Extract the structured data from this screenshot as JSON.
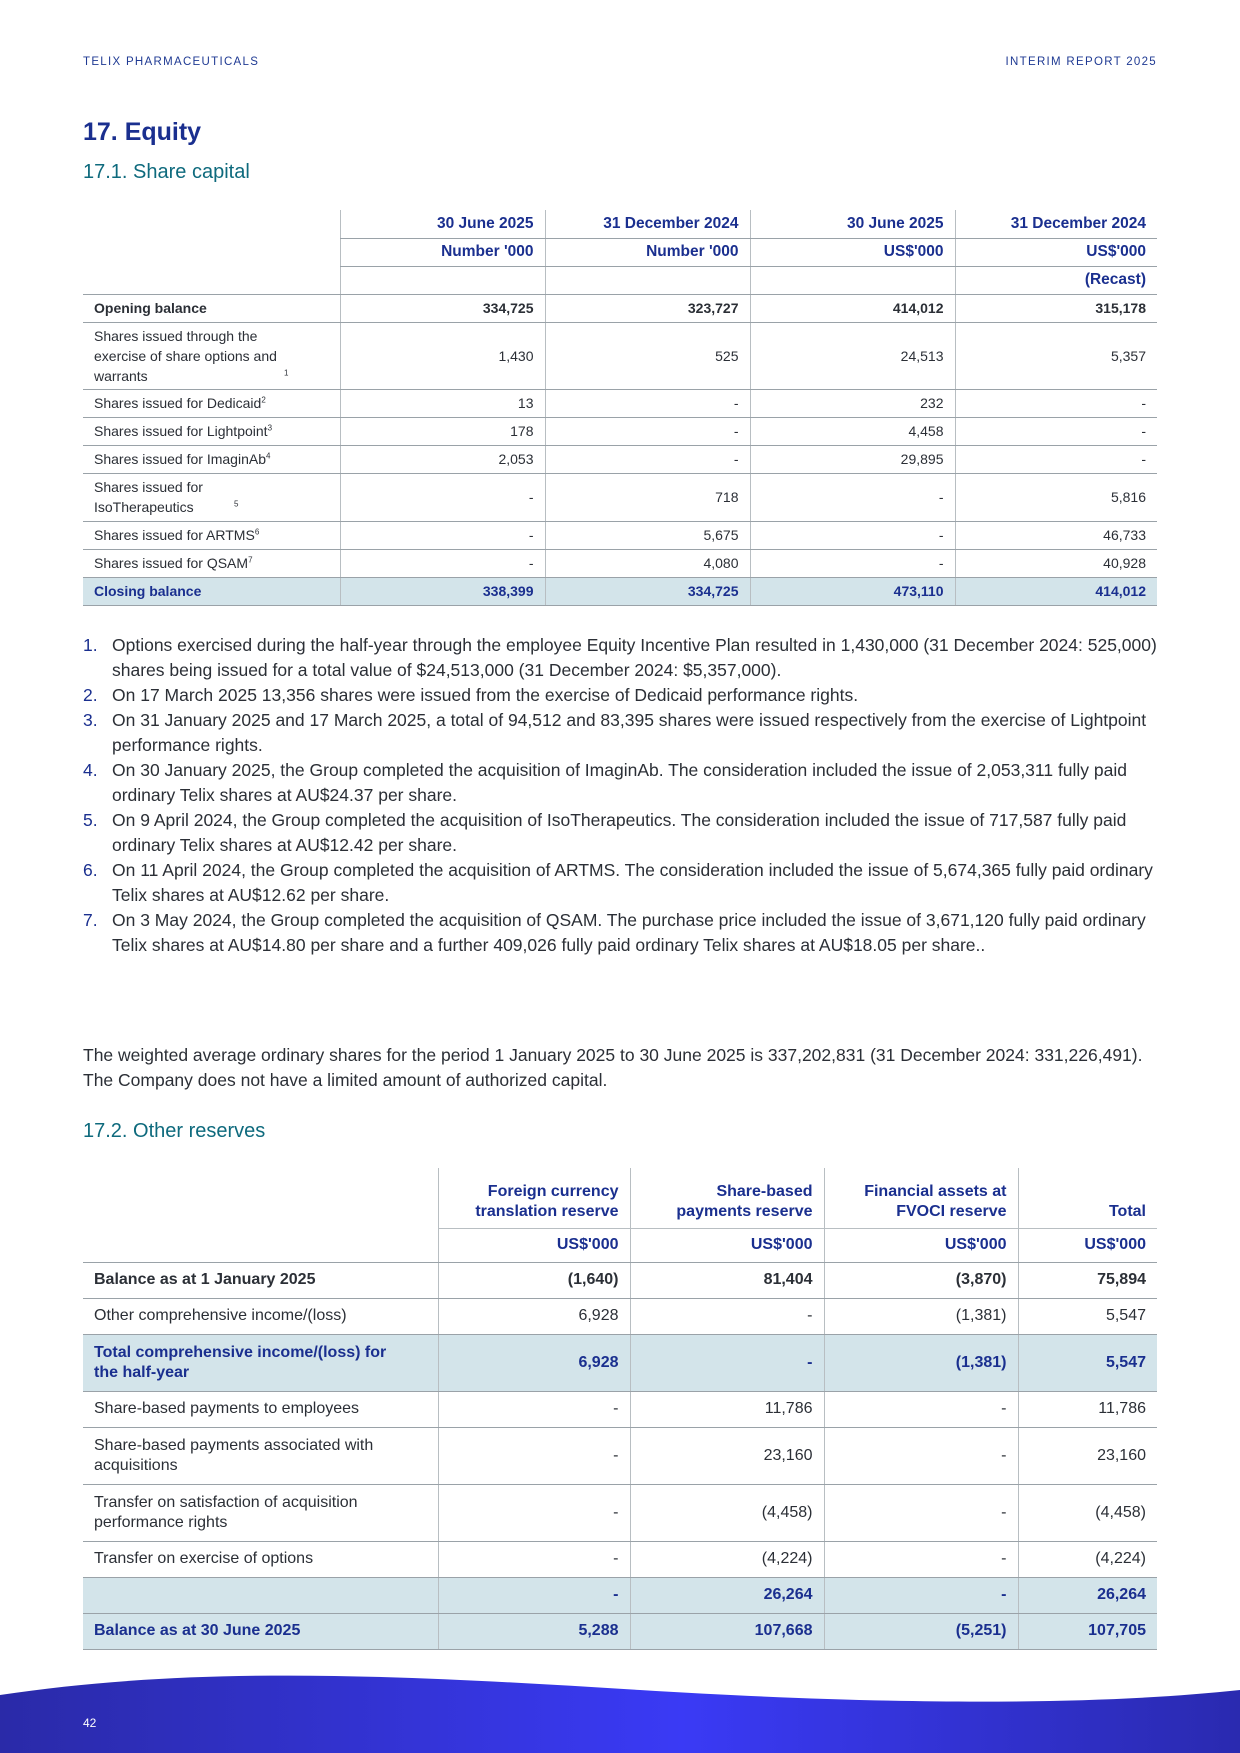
{
  "header": {
    "left": "TELIX PHARMACEUTICALS",
    "right": "INTERIM REPORT 2025"
  },
  "section": {
    "title": "17. Equity",
    "sub1": "17.1. Share capital",
    "sub2": "17.2. Other reserves"
  },
  "share_capital": {
    "headers": [
      [
        "30 June 2025",
        "31 December 2024",
        "30 June 2025",
        "31 December 2024"
      ],
      [
        "Number '000",
        "Number '000",
        "US$'000",
        "US$'000"
      ],
      [
        "",
        "",
        "",
        "(Recast)"
      ]
    ],
    "rows": [
      {
        "label": "Opening balance",
        "sup": "",
        "values": [
          "334,725",
          "323,727",
          "414,012",
          "315,178"
        ]
      },
      {
        "label": "Shares issued through the exercise of share options and warrants",
        "sup": "1",
        "values": [
          "1,430",
          "525",
          "24,513",
          "5,357"
        ]
      },
      {
        "label": "Shares issued for Dedicaid",
        "sup": "2",
        "values": [
          "13",
          "-",
          "232",
          "-"
        ]
      },
      {
        "label": "Shares issued for Lightpoint",
        "sup": "3",
        "values": [
          "178",
          "-",
          "4,458",
          "-"
        ]
      },
      {
        "label": "Shares issued for ImaginAb",
        "sup": "4",
        "values": [
          "2,053",
          "-",
          "29,895",
          "-"
        ]
      },
      {
        "label": "Shares issued for IsoTherapeutics",
        "sup": "5",
        "values": [
          "-",
          "718",
          "-",
          "5,816"
        ]
      },
      {
        "label": "Shares issued for ARTMS",
        "sup": "6",
        "values": [
          "-",
          "5,675",
          "-",
          "46,733"
        ]
      },
      {
        "label": "Shares issued for QSAM",
        "sup": "7",
        "values": [
          "-",
          "4,080",
          "-",
          "40,928"
        ]
      },
      {
        "label": "Closing balance",
        "sup": "",
        "values": [
          "338,399",
          "334,725",
          "473,110",
          "414,012"
        ]
      }
    ]
  },
  "notes": [
    "Options exercised during the half-year through the employee Equity Incentive Plan resulted in 1,430,000 (31 December 2024: 525,000) shares being issued for a total value of $24,513,000 (31 December 2024: $5,357,000).",
    "On 17 March 2025 13,356 shares were issued from the exercise of Dedicaid performance rights.",
    "On 31 January 2025 and 17 March 2025, a total of 94,512 and 83,395 shares were issued respectively from the exercise of Lightpoint performance rights.",
    "On 30 January 2025, the Group completed the acquisition of ImaginAb. The consideration included the issue of 2,053,311 fully paid ordinary Telix shares at AU$24.37 per share.",
    "On 9 April 2024, the Group completed the acquisition of IsoTherapeutics. The consideration included the issue of 717,587 fully paid ordinary Telix shares at AU$12.42 per share.",
    "On 11 April 2024, the Group completed the acquisition of ARTMS. The consideration included the issue of 5,674,365 fully paid ordinary Telix shares at AU$12.62 per share.",
    "On 3 May 2024, the Group completed the acquisition of QSAM. The purchase price included the issue of 3,671,120 fully paid ordinary Telix shares at AU$14.80 per share and a further 409,026 fully paid ordinary Telix shares at AU$18.05 per share.."
  ],
  "paragraph": "The weighted average ordinary shares for the period 1 January 2025 to 30 June 2025 is 337,202,831 (31 December 2024: 331,226,491). The Company does not have a limited amount of authorized capital.",
  "other_reserves": {
    "headers": [
      "Foreign currency translation reserve",
      "Share-based payments reserve",
      "Financial assets at FVOCI reserve",
      "Total"
    ],
    "units": [
      "US$'000",
      "US$'000",
      "US$'000",
      "US$'000"
    ],
    "rows": [
      {
        "label": "Balance as at 1 January 2025",
        "values": [
          "(1,640)",
          "81,404",
          "(3,870)",
          "75,894"
        ]
      },
      {
        "label": "Other comprehensive income/(loss)",
        "values": [
          "6,928",
          "-",
          "(1,381)",
          "5,547"
        ]
      },
      {
        "label": "Total comprehensive income/(loss) for the half-year",
        "values": [
          "6,928",
          "-",
          "(1,381)",
          "5,547"
        ]
      },
      {
        "label": "Share-based payments to employees",
        "values": [
          "-",
          "11,786",
          "-",
          "11,786"
        ]
      },
      {
        "label": "Share-based payments associated with acquisitions",
        "values": [
          "-",
          "23,160",
          "-",
          "23,160"
        ]
      },
      {
        "label": "Transfer on satisfaction of acquisition performance rights",
        "values": [
          "-",
          "(4,458)",
          "-",
          "(4,458)"
        ]
      },
      {
        "label": "Transfer on exercise of options",
        "values": [
          "-",
          "(4,224)",
          "-",
          "(4,224)"
        ]
      },
      {
        "label": "",
        "values": [
          "-",
          "26,264",
          "-",
          "26,264"
        ]
      },
      {
        "label": "Balance as at 30 June 2025",
        "values": [
          "5,288",
          "107,668",
          "(5,251)",
          "107,705"
        ]
      }
    ]
  },
  "footer": {
    "page": "42"
  },
  "colors": {
    "heading": "#1a2f8f",
    "subheading": "#0e6a7d",
    "highlight": "#d3e4ea",
    "footer": "#3a3af0"
  }
}
